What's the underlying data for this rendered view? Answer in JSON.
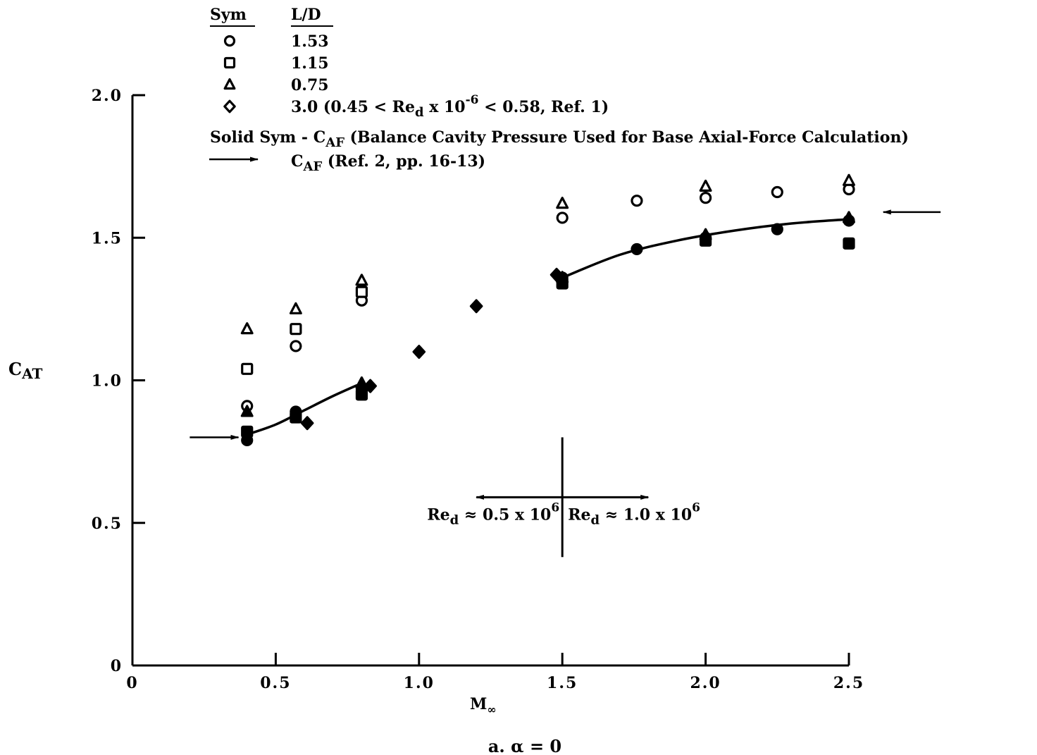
{
  "chart_data": {
    "type": "scatter",
    "title": "",
    "xlabel": "M",
    "xlabel_sub": "∞",
    "ylabel_main": "C",
    "ylabel_sub": "AT",
    "caption": "a.  α = 0",
    "xlim": [
      0,
      2.5
    ],
    "ylim": [
      0,
      2.0
    ],
    "x_ticks": [
      "0",
      "0.5",
      "1.0",
      "1.5",
      "2.0",
      "2.5"
    ],
    "x_tick_values": [
      0,
      0.5,
      1.0,
      1.5,
      2.0,
      2.5
    ],
    "y_ticks": [
      "0",
      "0.5",
      "1.0",
      "1.5",
      "2.0"
    ],
    "y_tick_values": [
      0,
      0.5,
      1.0,
      1.5,
      2.0
    ],
    "legend": {
      "header_sym": "Sym",
      "header_ld": "L/D",
      "rows": [
        {
          "marker": "circle",
          "label": "1.53"
        },
        {
          "marker": "square",
          "label": "1.15"
        },
        {
          "marker": "triangle",
          "label": "0.75"
        },
        {
          "marker": "diamond",
          "label": "3.0 (0.45 < Re",
          "sub": "d",
          "mid": " x 10",
          "sup": "-6",
          "tail": " < 0.58, Ref. 1)"
        }
      ],
      "solid_note_pre": "Solid Sym - C",
      "solid_note_sub": "AF",
      "solid_note_post": "  (Balance Cavity Pressure Used for Base Axial-Force Calculation)",
      "arrow_note_pre": "C",
      "arrow_note_sub": "AF",
      "arrow_note_post": " (Ref. 2, pp. 16-13)"
    },
    "series": [
      {
        "marker": "circle",
        "filled": false,
        "points": [
          [
            0.4,
            0.91
          ],
          [
            0.57,
            1.12
          ],
          [
            0.8,
            1.28
          ],
          [
            1.5,
            1.57
          ],
          [
            1.76,
            1.63
          ],
          [
            2.0,
            1.64
          ],
          [
            2.25,
            1.66
          ],
          [
            2.5,
            1.67
          ]
        ]
      },
      {
        "marker": "square",
        "filled": false,
        "points": [
          [
            0.4,
            1.04
          ],
          [
            0.57,
            1.18
          ],
          [
            0.8,
            1.31
          ]
        ]
      },
      {
        "marker": "triangle",
        "filled": false,
        "points": [
          [
            0.4,
            1.18
          ],
          [
            0.57,
            1.25
          ],
          [
            0.8,
            1.35
          ],
          [
            1.5,
            1.62
          ],
          [
            2.0,
            1.68
          ],
          [
            2.5,
            1.7
          ]
        ]
      },
      {
        "marker": "circle",
        "filled": true,
        "points": [
          [
            0.4,
            0.79
          ],
          [
            0.57,
            0.89
          ],
          [
            0.8,
            0.97
          ],
          [
            1.5,
            1.36
          ],
          [
            1.76,
            1.46
          ],
          [
            2.0,
            1.5
          ],
          [
            2.25,
            1.53
          ],
          [
            2.5,
            1.56
          ]
        ]
      },
      {
        "marker": "square",
        "filled": true,
        "points": [
          [
            0.4,
            0.82
          ],
          [
            0.57,
            0.87
          ],
          [
            0.8,
            0.95
          ],
          [
            1.5,
            1.34
          ],
          [
            2.0,
            1.49
          ],
          [
            2.5,
            1.48
          ]
        ]
      },
      {
        "marker": "triangle",
        "filled": true,
        "points": [
          [
            0.4,
            0.89
          ],
          [
            0.8,
            0.99
          ],
          [
            1.5,
            1.36
          ],
          [
            2.0,
            1.51
          ],
          [
            2.5,
            1.57
          ]
        ]
      },
      {
        "marker": "diamond",
        "filled": true,
        "points": [
          [
            0.61,
            0.85
          ],
          [
            0.83,
            0.98
          ],
          [
            1.0,
            1.1
          ],
          [
            1.2,
            1.26
          ],
          [
            1.48,
            1.37
          ]
        ]
      }
    ],
    "fairings": [
      {
        "points": [
          [
            0.4,
            0.81
          ],
          [
            0.5,
            0.845
          ],
          [
            0.6,
            0.895
          ],
          [
            0.7,
            0.945
          ],
          [
            0.8,
            0.99
          ]
        ]
      },
      {
        "points": [
          [
            1.5,
            1.36
          ],
          [
            1.7,
            1.44
          ],
          [
            1.9,
            1.49
          ],
          [
            2.1,
            1.525
          ],
          [
            2.3,
            1.55
          ],
          [
            2.5,
            1.565
          ]
        ]
      }
    ],
    "ref_arrows": [
      {
        "x_from": 0.2,
        "x_to": 0.37,
        "y": 0.8
      },
      {
        "x_from": 2.82,
        "x_to": 2.62,
        "y": 1.59
      }
    ],
    "reynolds": {
      "x_divider": 1.5,
      "y_range": [
        0.38,
        0.8
      ],
      "arrow_y": 0.59,
      "x_left": 1.2,
      "x_right": 1.8,
      "left_label": {
        "pre": "Re",
        "sub": "d",
        "post": " ≈ 0.5 x 10",
        "sup": "6"
      },
      "right_label": {
        "pre": "Re",
        "sub": "d",
        "post": " ≈ 1.0 x 10",
        "sup": "6"
      }
    }
  }
}
